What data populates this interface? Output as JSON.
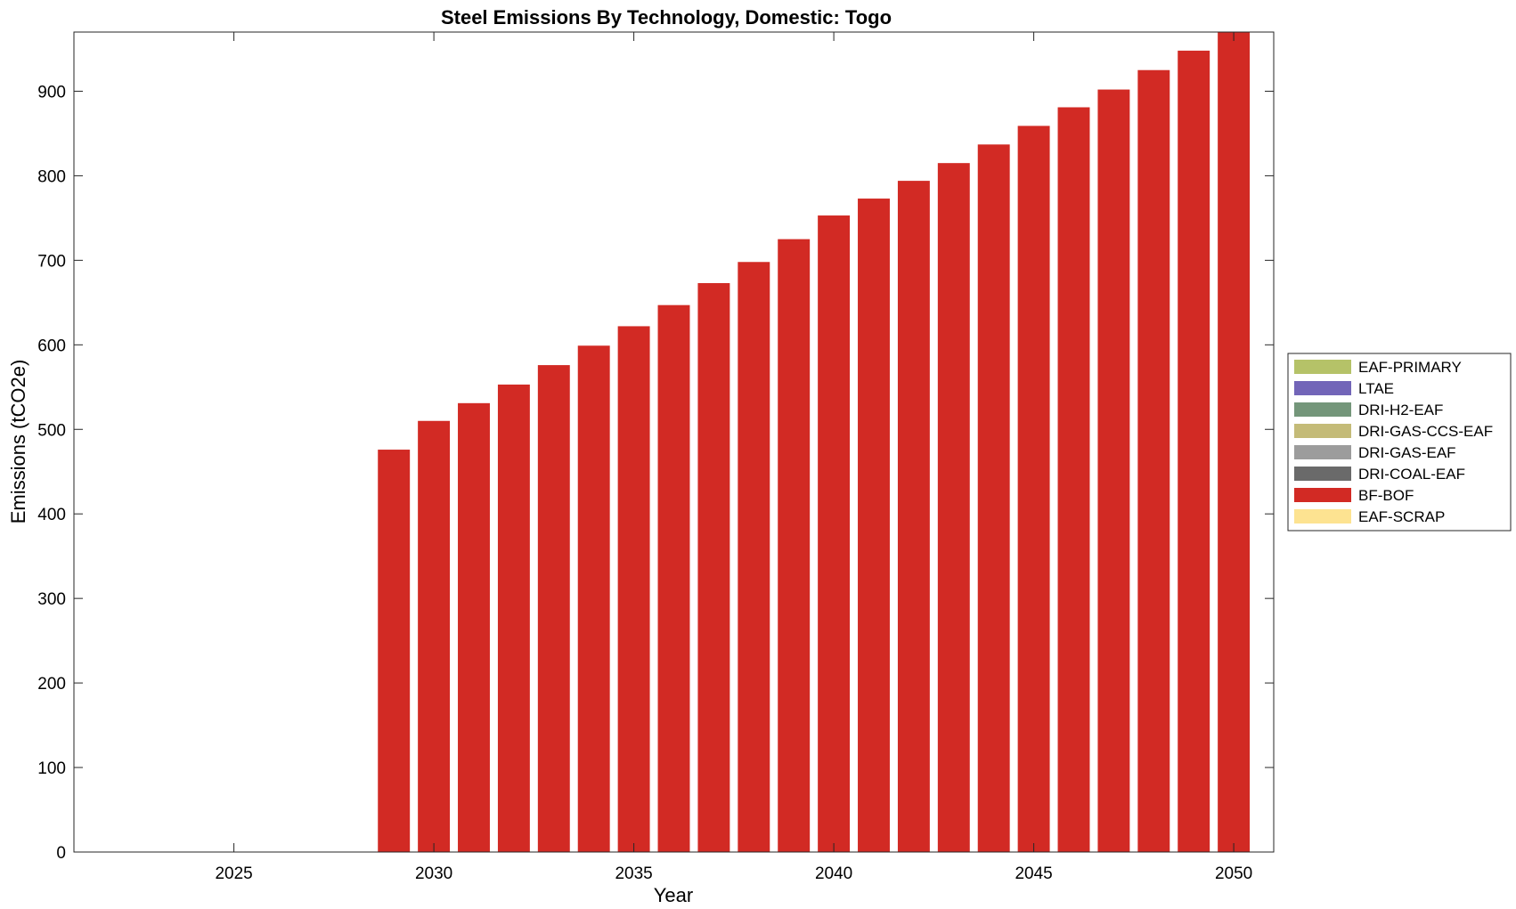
{
  "chart_data": {
    "type": "bar",
    "stacked": true,
    "title": "Steel Emissions By Technology, Domestic: Togo",
    "xlabel": "Year",
    "ylabel": "Emissions (tCO2e)",
    "xlim": [
      2021,
      2051
    ],
    "ylim": [
      0,
      970
    ],
    "xticks": [
      2025,
      2030,
      2035,
      2040,
      2045,
      2050
    ],
    "yticks": [
      0,
      100,
      200,
      300,
      400,
      500,
      600,
      700,
      800,
      900
    ],
    "grid": false,
    "legend_position": "outside-right",
    "x": [
      2022,
      2023,
      2024,
      2025,
      2026,
      2027,
      2028,
      2029,
      2030,
      2031,
      2032,
      2033,
      2034,
      2035,
      2036,
      2037,
      2038,
      2039,
      2040,
      2041,
      2042,
      2043,
      2044,
      2045,
      2046,
      2047,
      2048,
      2049,
      2050
    ],
    "series": [
      {
        "name": "EAF-PRIMARY",
        "color": "#b5c268",
        "values": [
          0,
          0,
          0,
          0,
          0,
          0,
          0,
          0,
          0,
          0,
          0,
          0,
          0,
          0,
          0,
          0,
          0,
          0,
          0,
          0,
          0,
          0,
          0,
          0,
          0,
          0,
          0,
          0,
          0
        ]
      },
      {
        "name": "LTAE",
        "color": "#7265b8",
        "values": [
          0,
          0,
          0,
          0,
          0,
          0,
          0,
          0,
          0,
          0,
          0,
          0,
          0,
          0,
          0,
          0,
          0,
          0,
          0,
          0,
          0,
          0,
          0,
          0,
          0,
          0,
          0,
          0,
          0
        ]
      },
      {
        "name": "DRI-H2-EAF",
        "color": "#74967a",
        "values": [
          0,
          0,
          0,
          0,
          0,
          0,
          0,
          0,
          0,
          0,
          0,
          0,
          0,
          0,
          0,
          0,
          0,
          0,
          0,
          0,
          0,
          0,
          0,
          0,
          0,
          0,
          0,
          0,
          0
        ]
      },
      {
        "name": "DRI-GAS-CCS-EAF",
        "color": "#c4bb78",
        "values": [
          0,
          0,
          0,
          0,
          0,
          0,
          0,
          0,
          0,
          0,
          0,
          0,
          0,
          0,
          0,
          0,
          0,
          0,
          0,
          0,
          0,
          0,
          0,
          0,
          0,
          0,
          0,
          0,
          0
        ]
      },
      {
        "name": "DRI-GAS-EAF",
        "color": "#9c9c9c",
        "values": [
          0,
          0,
          0,
          0,
          0,
          0,
          0,
          0,
          0,
          0,
          0,
          0,
          0,
          0,
          0,
          0,
          0,
          0,
          0,
          0,
          0,
          0,
          0,
          0,
          0,
          0,
          0,
          0,
          0
        ]
      },
      {
        "name": "DRI-COAL-EAF",
        "color": "#6a6a6a",
        "values": [
          0,
          0,
          0,
          0,
          0,
          0,
          0,
          0,
          0,
          0,
          0,
          0,
          0,
          0,
          0,
          0,
          0,
          0,
          0,
          0,
          0,
          0,
          0,
          0,
          0,
          0,
          0,
          0,
          0
        ]
      },
      {
        "name": "BF-BOF",
        "color": "#d22a24",
        "values": [
          0,
          0,
          0,
          0,
          0,
          0,
          0,
          476,
          510,
          531,
          553,
          576,
          599,
          622,
          647,
          673,
          698,
          725,
          753,
          773,
          794,
          815,
          837,
          859,
          881,
          902,
          925,
          948,
          975
        ]
      },
      {
        "name": "EAF-SCRAP",
        "color": "#fde391",
        "values": [
          0,
          0,
          0,
          0,
          0,
          0,
          0,
          0,
          0,
          0,
          0,
          0,
          0,
          0,
          0,
          0,
          0,
          0,
          0,
          0,
          0,
          0,
          0,
          0,
          0,
          0,
          0,
          0,
          0
        ]
      }
    ]
  }
}
